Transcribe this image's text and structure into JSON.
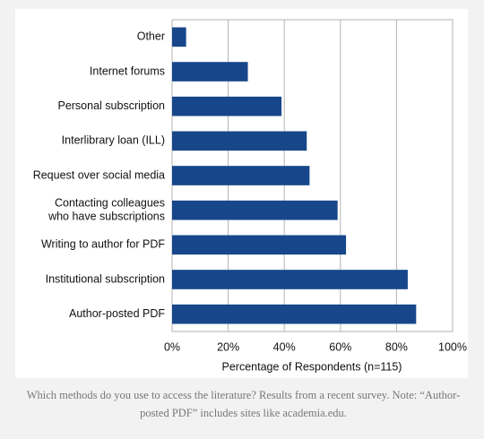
{
  "chart_data": {
    "type": "hbar",
    "categories": [
      "Other",
      "Internet forums",
      "Personal subscription",
      "Interlibrary loan (ILL)",
      "Request over social media",
      [
        "Contacting colleagues",
        "who have subscriptions"
      ],
      "Writing to author for PDF",
      "Institutional subscription",
      "Author-posted PDF"
    ],
    "values": [
      5,
      27,
      39,
      48,
      49,
      59,
      62,
      84,
      87
    ],
    "color": "#17478a",
    "xlim": [
      0,
      100
    ],
    "xticks": [
      {
        "value": 0,
        "label": "0%"
      },
      {
        "value": 20,
        "label": "20%"
      },
      {
        "value": 40,
        "label": "40%"
      },
      {
        "value": 60,
        "label": "60%"
      },
      {
        "value": 80,
        "label": "80%"
      },
      {
        "value": 100,
        "label": "100%"
      }
    ],
    "xlabel": "Percentage of Respondents (n=115)",
    "grid": true,
    "caption": "Which methods do you use to access the literature? Results from a recent survey. Note: “Author-posted PDF” includes sites like academia.edu."
  }
}
